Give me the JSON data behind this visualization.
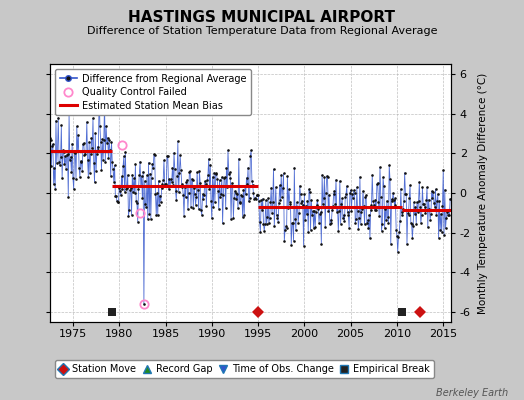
{
  "title": "HASTINGS MUNICIPAL AIRPORT",
  "subtitle": "Difference of Station Temperature Data from Regional Average",
  "ylabel": "Monthly Temperature Anomaly Difference (°C)",
  "xlim": [
    1972.5,
    2015.8
  ],
  "ylim": [
    -6.5,
    6.5
  ],
  "yticks": [
    -6,
    -4,
    -2,
    0,
    2,
    4,
    6
  ],
  "xticks": [
    1975,
    1980,
    1985,
    1990,
    1995,
    2000,
    2005,
    2010,
    2015
  ],
  "bg_color": "#c8c8c8",
  "plot_bg_color": "#ffffff",
  "line_color": "#3355cc",
  "marker_color": "#111111",
  "bias_color": "#dd0000",
  "station_move_dates": [
    1995.0,
    2012.5
  ],
  "empirical_break_dates": [
    1979.2,
    2010.5
  ],
  "qc_fail_dates": [
    1980.3,
    1982.2,
    1982.7
  ],
  "qc_fail_values": [
    2.4,
    -1.0,
    -5.6
  ],
  "bias_segments": [
    {
      "x_start": 1972.5,
      "x_end": 1979.2,
      "value": 2.1
    },
    {
      "x_start": 1979.2,
      "x_end": 1995.0,
      "value": 0.35
    },
    {
      "x_start": 1995.0,
      "x_end": 2010.5,
      "value": -0.72
    },
    {
      "x_start": 2010.5,
      "x_end": 2015.8,
      "value": -0.85
    }
  ],
  "watermark": "Berkeley Earth"
}
